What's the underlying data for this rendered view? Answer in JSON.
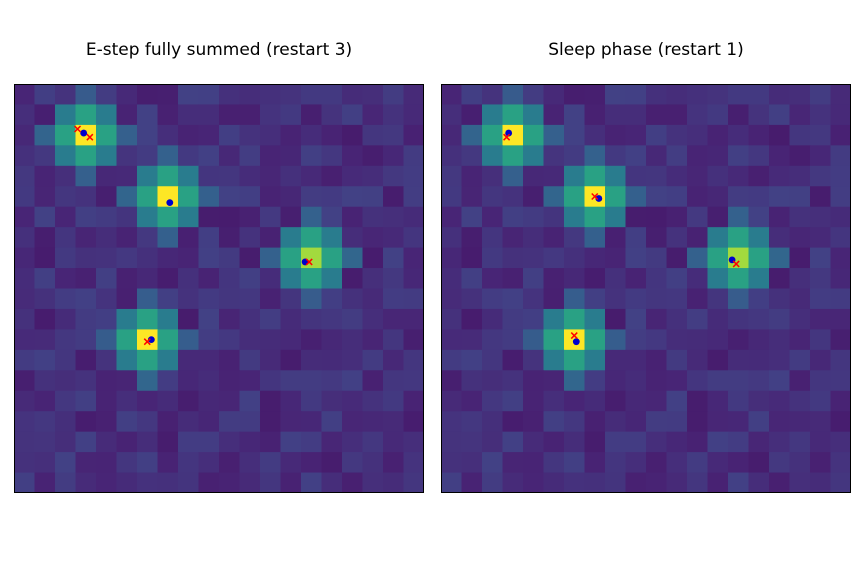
{
  "figure": {
    "grid": false,
    "axes_ticks": false
  },
  "chart_data": [
    {
      "type": "heatmap",
      "title": "E-step fully summed (restart 3)",
      "xlim": [
        0,
        20
      ],
      "ylim": [
        0,
        20
      ],
      "colormap": "viridis",
      "grid_size": [
        20,
        20
      ],
      "blobs": [
        {
          "row": 2,
          "col": 3,
          "peak": 1.0
        },
        {
          "row": 5,
          "col": 7,
          "peak": 1.0
        },
        {
          "row": 8,
          "col": 14,
          "peak": 0.9
        },
        {
          "row": 12,
          "col": 6,
          "peak": 1.0
        }
      ],
      "true_sources": {
        "marker": "dot",
        "color": "#0000cc",
        "points": [
          [
            3.4,
            2.4
          ],
          [
            7.6,
            5.8
          ],
          [
            14.2,
            8.7
          ],
          [
            6.7,
            12.5
          ]
        ]
      },
      "estimates": {
        "marker": "x",
        "color": "#ff0000",
        "points": [
          [
            3.1,
            2.2
          ],
          [
            3.7,
            2.6
          ],
          [
            14.4,
            8.7
          ],
          [
            6.5,
            12.6
          ]
        ]
      }
    },
    {
      "type": "heatmap",
      "title": "Sleep phase (restart 1)",
      "xlim": [
        0,
        20
      ],
      "ylim": [
        0,
        20
      ],
      "colormap": "viridis",
      "grid_size": [
        20,
        20
      ],
      "blobs": [
        {
          "row": 2,
          "col": 3,
          "peak": 1.0
        },
        {
          "row": 5,
          "col": 7,
          "peak": 1.0
        },
        {
          "row": 8,
          "col": 14,
          "peak": 0.9
        },
        {
          "row": 12,
          "col": 6,
          "peak": 1.0
        }
      ],
      "true_sources": {
        "marker": "dot",
        "color": "#0000cc",
        "points": [
          [
            3.3,
            2.4
          ],
          [
            7.7,
            5.6
          ],
          [
            14.2,
            8.6
          ],
          [
            6.6,
            12.6
          ]
        ]
      },
      "estimates": {
        "marker": "x",
        "color": "#ff0000",
        "points": [
          [
            3.2,
            2.6
          ],
          [
            7.5,
            5.5
          ],
          [
            14.4,
            8.8
          ],
          [
            6.5,
            12.3
          ]
        ]
      }
    }
  ]
}
